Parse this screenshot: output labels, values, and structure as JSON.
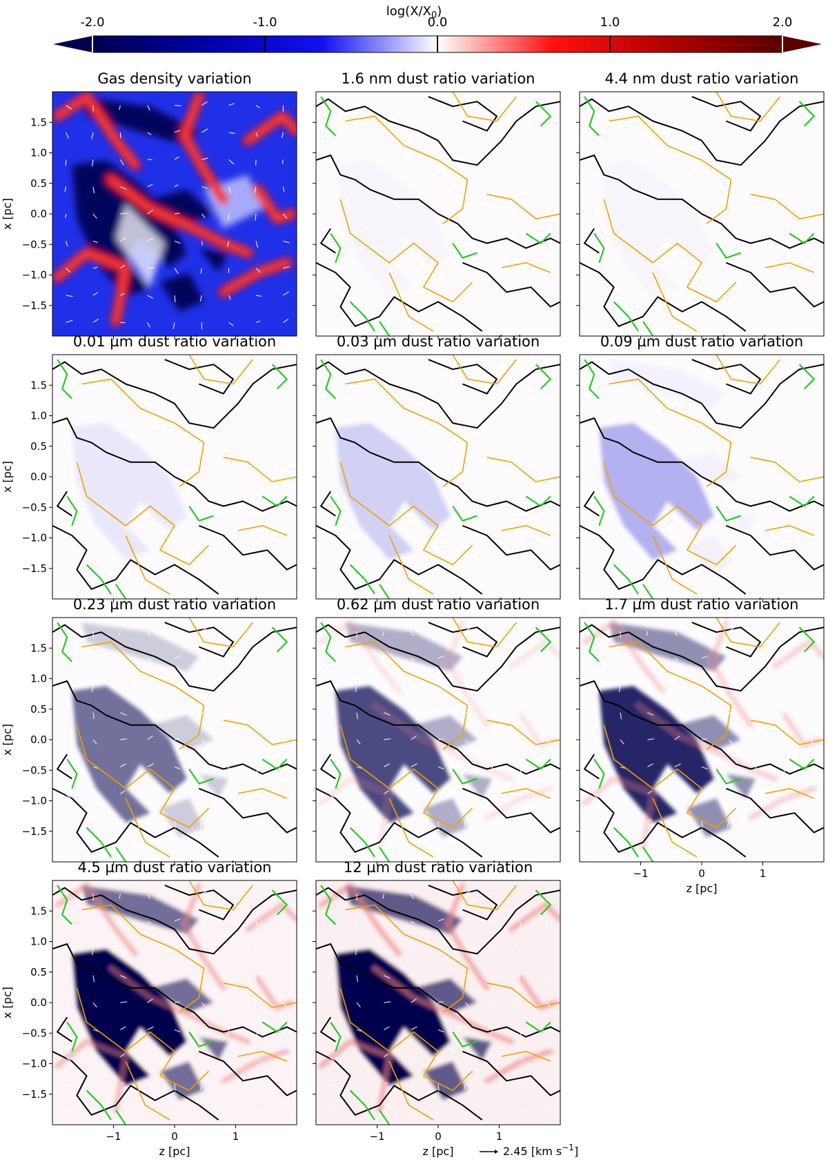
{
  "chart_data": {
    "type": "heatmap",
    "colorbar": {
      "label": "log(X/X",
      "label_sub": "0",
      "label_end": ")",
      "range": [
        -2.0,
        2.0
      ],
      "ticks": [
        "-2.0",
        "-1.0",
        "0.0",
        "1.0",
        "2.0"
      ],
      "colormap": [
        "#03004d",
        "#0000a8",
        "#1111f0",
        "#ffffff",
        "#ff1111",
        "#b30000",
        "#5a0000"
      ],
      "extend": "both"
    },
    "axes": {
      "x_range": [
        -2.0,
        2.0
      ],
      "y_range": [
        -2.0,
        2.0
      ],
      "x_ticks": [
        -1,
        0,
        1
      ],
      "x_tick_labels": [
        "−1",
        "0",
        "1"
      ],
      "y_ticks": [
        1.5,
        1.0,
        0.5,
        0.0,
        -0.5,
        -1.0,
        -1.5
      ],
      "y_tick_labels": [
        "1.5",
        "1.0",
        "0.5",
        "0.0",
        "−0.5",
        "−1.0",
        "−1.5"
      ],
      "xlabel": "z [pc]",
      "ylabel": "x [pc]"
    },
    "contour_colors": {
      "black": "#000000",
      "orange": "#f0a000",
      "green": "#22cc22"
    },
    "velocity_key": {
      "label": "2.45 [km s",
      "label_sup": "−1",
      "label_end": "]"
    },
    "panels": [
      {
        "title": "Gas density variation",
        "intensity": 1.0,
        "contours": false
      },
      {
        "title": "1.6 nm dust ratio variation",
        "intensity": 0.02,
        "contours": true
      },
      {
        "title": "4.4 nm dust ratio variation",
        "intensity": 0.02,
        "contours": true
      },
      {
        "title": "0.01 µm dust ratio variation",
        "intensity": 0.1,
        "contours": true
      },
      {
        "title": "0.03 µm dust ratio variation",
        "intensity": 0.22,
        "contours": true
      },
      {
        "title": "0.09 µm dust ratio variation",
        "intensity": 0.38,
        "contours": true
      },
      {
        "title": "0.23 µm dust ratio variation",
        "intensity": 0.55,
        "contours": true
      },
      {
        "title": "0.62 µm dust ratio variation",
        "intensity": 0.7,
        "contours": true
      },
      {
        "title": "1.7 µm dust ratio variation",
        "intensity": 0.85,
        "contours": true
      },
      {
        "title": "4.5 µm dust ratio variation",
        "intensity": 1.0,
        "contours": true
      },
      {
        "title": "12 µm dust ratio variation",
        "intensity": 1.1,
        "contours": true
      }
    ]
  }
}
